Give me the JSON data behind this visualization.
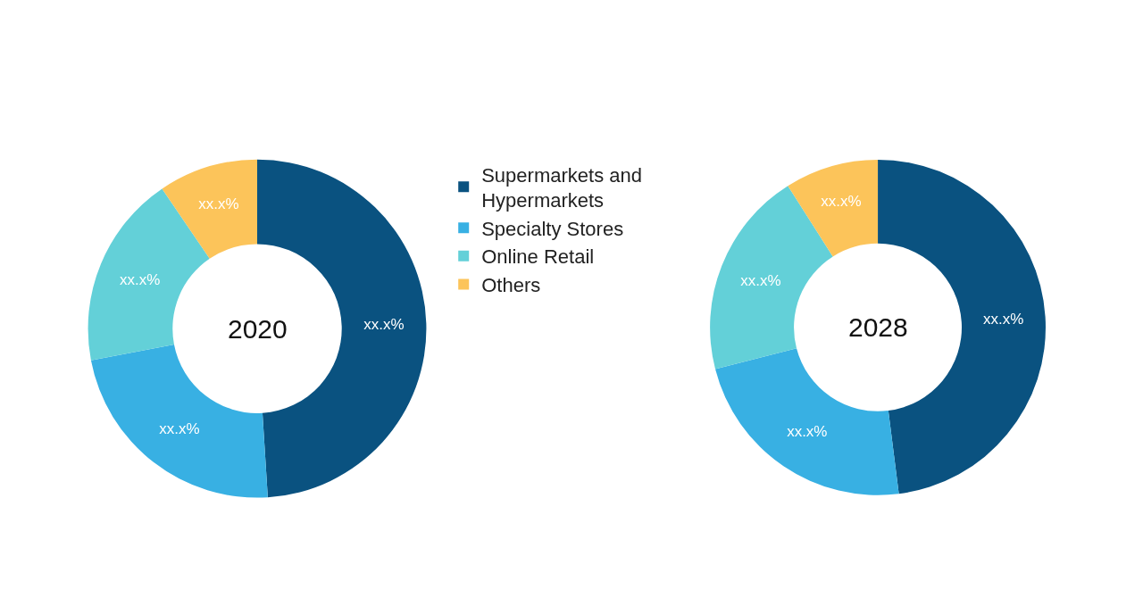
{
  "chart_data": [
    {
      "type": "donut",
      "title": "2020",
      "categories": [
        "Supermarkets and Hypermarkets",
        "Specialty Stores",
        "Online Retail",
        "Others"
      ],
      "values": [
        49,
        23,
        18.5,
        9.5
      ],
      "colors": [
        "#0a5280",
        "#38b0e3",
        "#63d0d8",
        "#fcc45a"
      ],
      "value_labels": [
        "xx.x%",
        "xx.x%",
        "xx.x%",
        "xx.x%"
      ],
      "legend": "right"
    },
    {
      "type": "donut",
      "title": "2028",
      "categories": [
        null,
        null,
        null,
        null
      ],
      "values": [
        48,
        23,
        20,
        9
      ],
      "colors": [
        "#0a5280",
        "#38b0e3",
        "#63d0d8",
        "#fcc45a"
      ],
      "value_labels": [
        "xx.x%",
        "xx.x%",
        "xx.x%",
        "xx.x%"
      ]
    }
  ]
}
